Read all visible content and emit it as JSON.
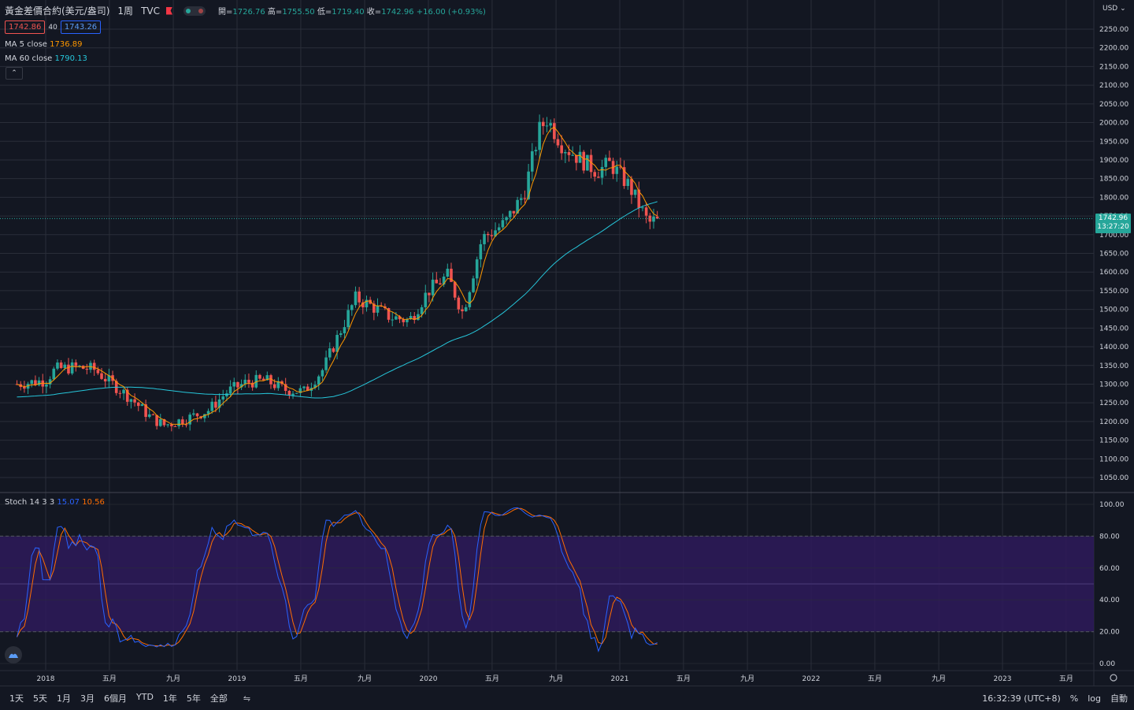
{
  "header": {
    "symbol_title": "黃金差價合約(美元/盎司)",
    "timeframe": "1周",
    "exchange": "TVC",
    "ohlc": {
      "open_label": "開=",
      "open": "1726.76",
      "high_label": "高=",
      "high": "1755.50",
      "low_label": "低=",
      "low": "1719.40",
      "close_label": "收=",
      "close": "1742.96",
      "change": "+16.00 (+0.93%)"
    }
  },
  "quote": {
    "sell": "1742.86",
    "spread": "40",
    "buy": "1743.26"
  },
  "ma": [
    {
      "label": "MA 5 close",
      "value": "1736.89",
      "color": "#ff9800"
    },
    {
      "label": "MA 60 close",
      "value": "1790.13",
      "color": "#26c6da"
    }
  ],
  "stoch": {
    "label": "Stoch 14 3 3",
    "k": "15.07",
    "d": "10.56",
    "k_color": "#2962ff",
    "d_color": "#ff6d00"
  },
  "price_axis": {
    "currency": "USD",
    "ticks": [
      "2250.00",
      "2200.00",
      "2150.00",
      "2100.00",
      "2050.00",
      "2000.00",
      "1950.00",
      "1900.00",
      "1850.00",
      "1800.00",
      "1750.00",
      "1700.00",
      "1650.00",
      "1600.00",
      "1550.00",
      "1500.00",
      "1450.00",
      "1400.00",
      "1350.00",
      "1300.00",
      "1250.00",
      "1200.00",
      "1150.00",
      "1100.00",
      "1050.00"
    ],
    "last_price": "1742.96",
    "countdown": "13:27:20"
  },
  "stoch_axis": {
    "ticks": [
      "100.00",
      "80.00",
      "60.00",
      "40.00",
      "20.00",
      "0.00"
    ]
  },
  "time_axis": [
    "2018",
    "五月",
    "九月",
    "2019",
    "五月",
    "九月",
    "2020",
    "五月",
    "九月",
    "2021",
    "五月",
    "九月",
    "2022",
    "五月",
    "九月",
    "2023",
    "五月"
  ],
  "bottom_bar": {
    "ranges": [
      "1天",
      "5天",
      "1月",
      "3月",
      "6個月",
      "YTD",
      "1年",
      "5年",
      "全部"
    ],
    "clock": "16:32:39 (UTC+8)",
    "percent": "%",
    "log": "log",
    "auto": "自動"
  },
  "colors": {
    "up": "#26a69a",
    "down": "#ef5350",
    "background": "#131722",
    "grid": "#2a2e39",
    "overbought_band": "#2e1a5a"
  },
  "chart_data": {
    "type": "candlestick",
    "title": "黃金差價合約(美元/盎司)",
    "interval": "weekly",
    "price_range": [
      1025,
      2275
    ],
    "stoch_range": [
      0,
      100
    ],
    "price_path_weekly_close_approx": [
      [
        2017.85,
        1300
      ],
      [
        2018.0,
        1310
      ],
      [
        2018.05,
        1340
      ],
      [
        2018.15,
        1345
      ],
      [
        2018.25,
        1340
      ],
      [
        2018.35,
        1300
      ],
      [
        2018.45,
        1260
      ],
      [
        2018.55,
        1210
      ],
      [
        2018.62,
        1190
      ],
      [
        2018.75,
        1210
      ],
      [
        2018.85,
        1230
      ],
      [
        2018.95,
        1280
      ],
      [
        2019.05,
        1305
      ],
      [
        2019.15,
        1310
      ],
      [
        2019.25,
        1285
      ],
      [
        2019.35,
        1280
      ],
      [
        2019.45,
        1340
      ],
      [
        2019.52,
        1420
      ],
      [
        2019.62,
        1530
      ],
      [
        2019.7,
        1510
      ],
      [
        2019.8,
        1480
      ],
      [
        2019.9,
        1470
      ],
      [
        2020.0,
        1550
      ],
      [
        2020.1,
        1590
      ],
      [
        2020.18,
        1490
      ],
      [
        2020.28,
        1690
      ],
      [
        2020.4,
        1730
      ],
      [
        2020.5,
        1810
      ],
      [
        2020.58,
        1980
      ],
      [
        2020.62,
        2010
      ],
      [
        2020.7,
        1940
      ],
      [
        2020.8,
        1900
      ],
      [
        2020.88,
        1870
      ],
      [
        2020.95,
        1890
      ],
      [
        2021.05,
        1830
      ],
      [
        2021.15,
        1730
      ],
      [
        2021.2,
        1742.96
      ]
    ],
    "ma5_last": 1736.89,
    "ma60_last": 1790.13,
    "stoch_last": {
      "k": 15.07,
      "d": 10.56
    },
    "stoch_bands": [
      20,
      80
    ]
  }
}
